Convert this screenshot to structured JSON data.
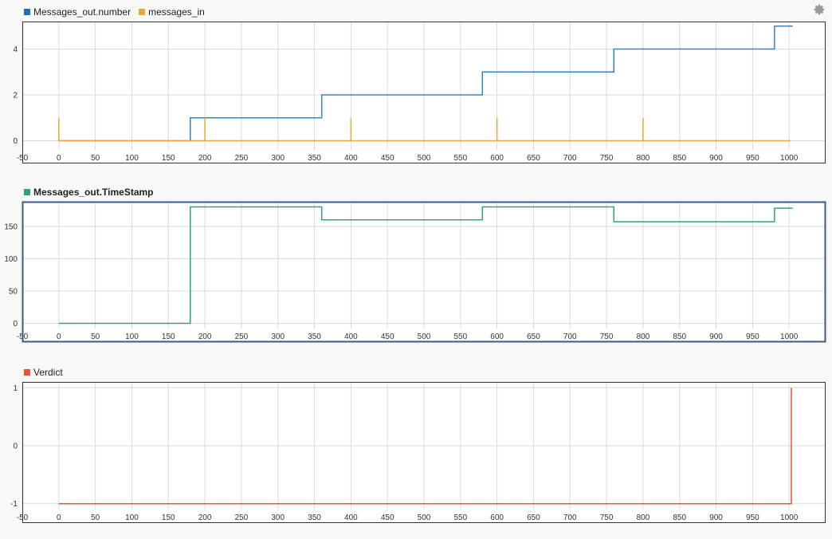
{
  "settings_icon": "gear-icon",
  "chart_data": [
    {
      "type": "line",
      "step": true,
      "legend": [
        {
          "name": "Messages_out.number",
          "color": "#1f6eb5"
        },
        {
          "name": "messages_in",
          "color": "#e8a838"
        }
      ],
      "xlim": [
        -50,
        1050
      ],
      "xticks": [
        -50,
        0,
        50,
        100,
        150,
        200,
        250,
        300,
        350,
        400,
        450,
        500,
        550,
        600,
        650,
        700,
        750,
        800,
        850,
        900,
        950,
        1000
      ],
      "ylim": [
        -0.4,
        5.2
      ],
      "yticks": [
        0,
        2,
        4
      ],
      "series": [
        {
          "name": "Messages_out.number",
          "color": "#3b82c4",
          "x": [
            0,
            180,
            360,
            580,
            760,
            980,
            1005
          ],
          "y": [
            0,
            1,
            2,
            3,
            4,
            5,
            5
          ]
        },
        {
          "name": "messages_in",
          "color": "#e8a838",
          "impulse": true,
          "baseline": 0,
          "x_end": 1002,
          "x": [
            0,
            200,
            400,
            600,
            800
          ],
          "y": [
            1,
            1,
            1,
            1,
            1
          ]
        }
      ]
    },
    {
      "type": "line",
      "step": true,
      "selected": true,
      "legend": [
        {
          "name": "Messages_out.TimeStamp",
          "color": "#2aa876"
        }
      ],
      "xlim": [
        -50,
        1050
      ],
      "xticks": [
        -50,
        0,
        50,
        100,
        150,
        200,
        250,
        300,
        350,
        400,
        450,
        500,
        550,
        600,
        650,
        700,
        750,
        800,
        850,
        900,
        950,
        1000
      ],
      "ylim": [
        -8,
        188
      ],
      "yticks": [
        0,
        50,
        100,
        150
      ],
      "series": [
        {
          "name": "Messages_out.TimeStamp",
          "color": "#2aa876",
          "x": [
            0,
            180,
            360,
            580,
            760,
            980,
            1005
          ],
          "y": [
            0,
            180,
            160,
            180,
            157,
            178,
            178
          ]
        }
      ]
    },
    {
      "type": "line",
      "step": true,
      "legend": [
        {
          "name": "Verdict",
          "color": "#e5533c"
        }
      ],
      "xlim": [
        -50,
        1050
      ],
      "xticks": [
        -50,
        0,
        50,
        100,
        150,
        200,
        250,
        300,
        350,
        400,
        450,
        500,
        550,
        600,
        650,
        700,
        750,
        800,
        850,
        900,
        950,
        1000
      ],
      "ylim": [
        -1.1,
        1.1
      ],
      "yticks": [
        -1,
        0,
        1
      ],
      "series": [
        {
          "name": "Verdict",
          "color": "#e5533c",
          "x": [
            0,
            1003,
            1003
          ],
          "y": [
            -1,
            -1,
            1
          ]
        }
      ]
    }
  ]
}
